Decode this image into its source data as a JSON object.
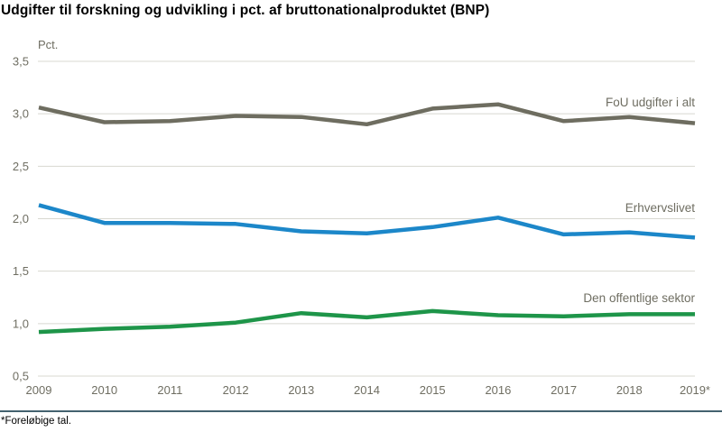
{
  "page": {
    "title": "Udgifter til forskning og udvikling i pct. af bruttonationalproduktet (BNP)",
    "footnote": "*Foreløbige tal."
  },
  "colors": {
    "axis_text": "#6f6e62",
    "gridline": "#d8d8d0",
    "divider": "#44626f",
    "background": "#ffffff"
  },
  "chart_data": {
    "type": "line",
    "title": "Udgifter til forskning og udvikling i pct. af bruttonationalproduktet (BNP)",
    "unit_label": "Pct.",
    "xlabel": "",
    "ylabel": "Pct.",
    "categories": [
      "2009",
      "2010",
      "2011",
      "2012",
      "2013",
      "2014",
      "2015",
      "2016",
      "2017",
      "2018",
      "2019*"
    ],
    "series": [
      {
        "name": "FoU udgifter i alt",
        "color": "#6e6d60",
        "values": [
          3.06,
          2.92,
          2.93,
          2.98,
          2.97,
          2.9,
          3.05,
          3.09,
          2.93,
          2.97,
          2.91
        ]
      },
      {
        "name": "Erhvervslivet",
        "color": "#1c87c9",
        "values": [
          2.13,
          1.96,
          1.96,
          1.95,
          1.88,
          1.86,
          1.92,
          2.01,
          1.85,
          1.87,
          1.82
        ]
      },
      {
        "name": "Den offentlige sektor",
        "color": "#1e9549",
        "values": [
          0.92,
          0.95,
          0.97,
          1.01,
          1.1,
          1.06,
          1.12,
          1.08,
          1.07,
          1.09,
          1.09
        ]
      }
    ],
    "ylim": [
      0.5,
      3.5
    ],
    "ytick_step": 0.5,
    "ytick_labels_top_to_bottom": [
      "3,5",
      "3,0",
      "2,5",
      "2,0",
      "1,5",
      "1,0",
      "0,5"
    ],
    "grid": true,
    "legend_position": "inline-right",
    "footnote": "*Foreløbige tal."
  }
}
